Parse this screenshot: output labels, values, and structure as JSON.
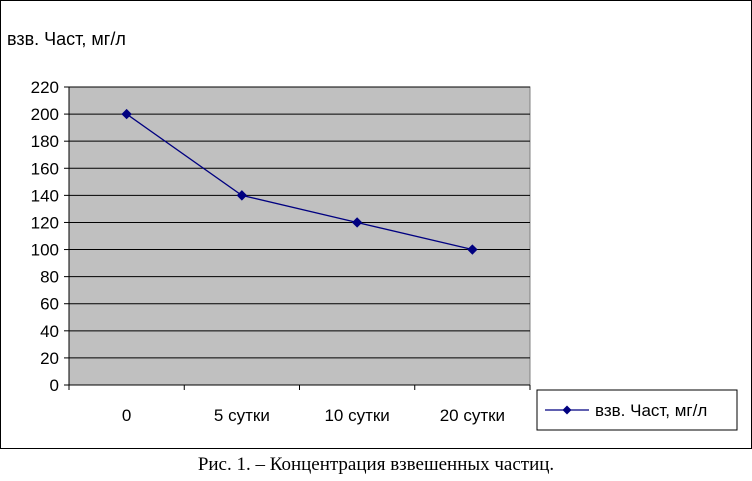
{
  "chart_data": {
    "type": "line",
    "title": "взв. Част, мг/л",
    "categories": [
      "0",
      "5 сутки",
      "10 сутки",
      "20 сутки"
    ],
    "series": [
      {
        "name": "взв. Част, мг/л",
        "values": [
          200,
          140,
          120,
          100
        ]
      }
    ],
    "ylim": [
      0,
      220
    ],
    "yticks": [
      0,
      20,
      40,
      60,
      80,
      100,
      120,
      140,
      160,
      180,
      200,
      220
    ],
    "grid": true,
    "legend": "right",
    "plot_background": "#c0c0c0",
    "series_color": "#000080"
  },
  "caption": "Рис. 1. – Концентрация взвешенных частиц."
}
